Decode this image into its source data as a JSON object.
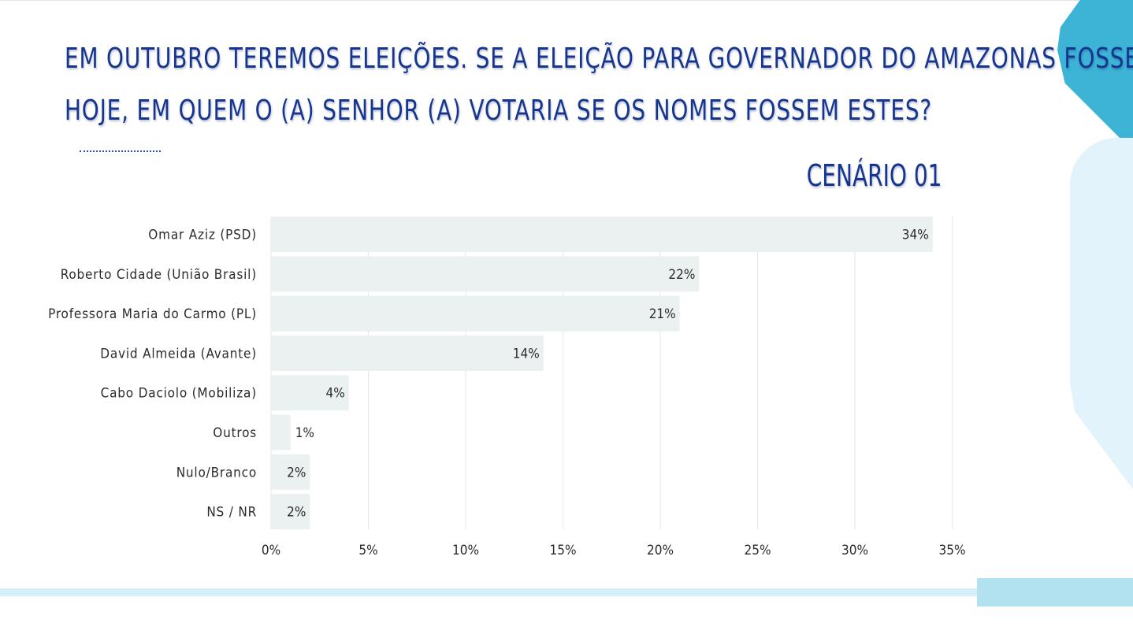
{
  "header": {
    "title_line1": "EM OUTUBRO TEREMOS ELEIÇÕES. SE A ELEIÇÃO PARA GOVERNADOR DO AMAZONAS FOSSE",
    "title_line2": "HOJE, EM QUEM O (A) SENHOR (A) VOTARIA SE OS NOMES FOSSEM ESTES?",
    "scenario": "CENÁRIO 01"
  },
  "colors": {
    "title": "#15358f",
    "bar": "#ebf0f1",
    "accent_dark": "#3db3d6",
    "accent_light": "#e2f3fb"
  },
  "chart_data": {
    "type": "bar",
    "orientation": "horizontal",
    "categories": [
      "Omar Aziz (PSD)",
      "Roberto Cidade (União Brasil)",
      "Professora Maria do Carmo (PL)",
      "David Almeida (Avante)",
      "Cabo Daciolo (Mobiliza)",
      "Outros",
      "Nulo/Branco",
      "NS / NR"
    ],
    "values": [
      34,
      22,
      21,
      14,
      4,
      1,
      2,
      2
    ],
    "data_labels": [
      "34%",
      "22%",
      "21%",
      "14%",
      "4%",
      "1%",
      "2%",
      "2%"
    ],
    "x_ticks": [
      "0%",
      "5%",
      "10%",
      "15%",
      "20%",
      "25%",
      "30%",
      "35%"
    ],
    "xlim": [
      0,
      35
    ],
    "grid": true,
    "title": "CENÁRIO 01",
    "xlabel": "",
    "ylabel": ""
  }
}
